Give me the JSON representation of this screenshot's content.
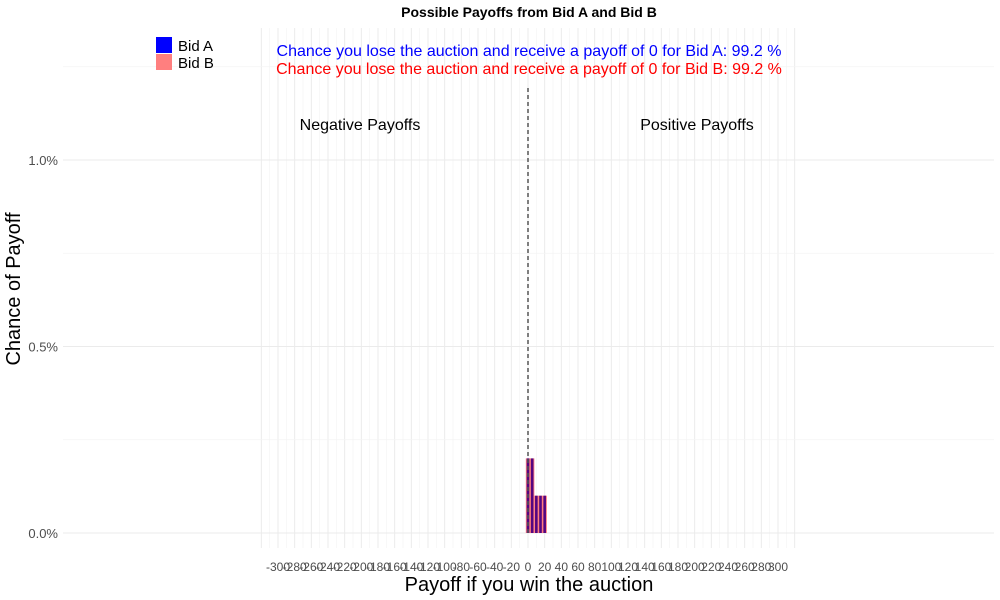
{
  "chart_data": {
    "type": "bar",
    "title": "Possible Payoffs from Bid A and Bid B",
    "xlabel": "Payoff if you win the auction",
    "ylabel": "Chance of Payoff",
    "xlim": [
      -320,
      320
    ],
    "ylim": [
      0,
      1.25
    ],
    "x_ticks": [
      -300,
      -280,
      -260,
      -240,
      -220,
      -200,
      -180,
      -160,
      -140,
      -120,
      -100,
      -80,
      -60,
      -40,
      -20,
      0,
      20,
      40,
      60,
      80,
      100,
      120,
      140,
      160,
      180,
      200,
      220,
      240,
      260,
      280,
      300
    ],
    "y_ticks": [
      {
        "value": 0.0,
        "label": "0.0%"
      },
      {
        "value": 0.5,
        "label": "0.5%"
      },
      {
        "value": 1.0,
        "label": "1.0%"
      }
    ],
    "grid": true,
    "legend_position": "top-left",
    "zero_line": "dashed vertical at x = 0",
    "series": [
      {
        "name": "Bid A",
        "color": "#0000ff",
        "x": [
          0,
          5,
          10,
          15,
          20
        ],
        "values": [
          0.2,
          0.2,
          0.1,
          0.1,
          0.1
        ]
      },
      {
        "name": "Bid B",
        "color": "#ff7f7f",
        "x": [
          0,
          5,
          10,
          15,
          20
        ],
        "values": [
          0.2,
          0.2,
          0.1,
          0.1,
          0.1
        ]
      }
    ],
    "region_labels": {
      "negative": "Negative Payoffs",
      "positive": "Positive Payoffs"
    },
    "annotations": [
      {
        "text": "Chance you lose the auction and receive a payoff of 0 for Bid A:  99.2 %",
        "color": "#0000ff"
      },
      {
        "text": "Chance you lose the auction and receive a payoff of 0 for Bid B:  99.2 %",
        "color": "#ff0000"
      }
    ]
  }
}
